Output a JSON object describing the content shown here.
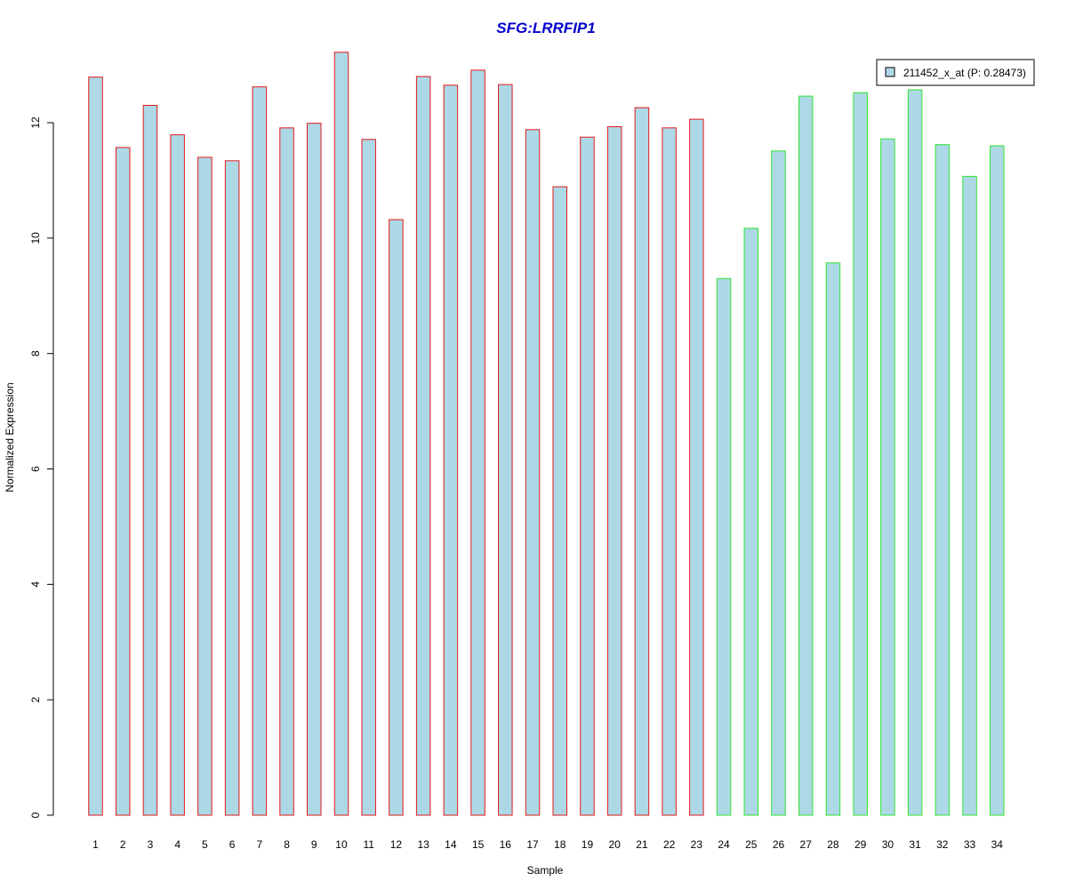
{
  "chart_data": {
    "type": "bar",
    "title": "SFG:LRRFIP1",
    "xlabel": "Sample",
    "ylabel": "Normalized Expression",
    "ylim": [
      0,
      13.3
    ],
    "yticks": [
      0,
      2,
      4,
      6,
      8,
      10,
      12
    ],
    "categories": [
      "1",
      "2",
      "3",
      "4",
      "5",
      "6",
      "7",
      "8",
      "9",
      "10",
      "11",
      "12",
      "13",
      "14",
      "15",
      "16",
      "17",
      "18",
      "19",
      "20",
      "21",
      "22",
      "23",
      "24",
      "25",
      "26",
      "27",
      "28",
      "29",
      "30",
      "31",
      "32",
      "33",
      "34"
    ],
    "series": [
      {
        "name": "211452_x_at (P: 0.28473)",
        "fill": "#add8e6",
        "values": [
          12.79,
          11.57,
          12.3,
          11.79,
          11.4,
          11.34,
          12.62,
          11.91,
          11.99,
          13.22,
          11.71,
          10.32,
          12.8,
          12.65,
          12.91,
          12.66,
          11.88,
          10.89,
          11.75,
          11.93,
          12.26,
          11.91,
          12.06,
          9.3,
          10.17,
          11.51,
          12.46,
          9.57,
          12.52,
          11.72,
          12.57,
          11.62,
          11.07,
          11.6
        ]
      }
    ],
    "border_groups": [
      {
        "color": "#e31a1c",
        "from": 1,
        "to": 23
      },
      {
        "color": "#2ee62e",
        "from": 24,
        "to": 34
      }
    ],
    "legend": {
      "position": "top-right",
      "label": "211452_x_at (P: 0.28473)"
    },
    "grid": false
  }
}
